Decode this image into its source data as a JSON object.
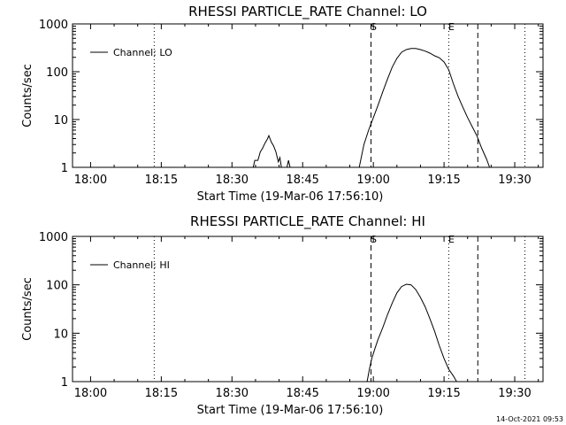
{
  "chart_data": [
    {
      "type": "line",
      "title": "RHESSI PARTICLE_RATE Channel: LO",
      "xlabel": "Start Time (19-Mar-06 17:56:10)",
      "ylabel": "Counts/sec",
      "y_scale": "log",
      "ylim": [
        1,
        1000
      ],
      "xlim": [
        "17:56:10",
        "19:36:00"
      ],
      "x_tick_labels": [
        "18:00",
        "18:15",
        "18:30",
        "18:45",
        "19:00",
        "19:15",
        "19:30"
      ],
      "y_tick_labels": [
        "1",
        "10",
        "100",
        "1000"
      ],
      "legend": {
        "position": "top-left",
        "entries": [
          "Channel: LO"
        ]
      },
      "markers": [
        {
          "label": "S",
          "x": "18:59:30",
          "style": "dashed"
        },
        {
          "label": "E",
          "x": "19:16:00",
          "style": "dotted"
        },
        {
          "label": "",
          "x": "19:22:10",
          "style": "dashed"
        },
        {
          "label": "",
          "x": "18:13:30",
          "style": "dotted"
        },
        {
          "label": "",
          "x": "19:32:10",
          "style": "dotted"
        }
      ],
      "series": [
        {
          "name": "Channel: LO",
          "segments": [
            [
              [
                "18:34:30",
                1
              ],
              [
                "18:34:50",
                1.4
              ],
              [
                "18:35:30",
                1.4
              ],
              [
                "18:36:00",
                2.1
              ],
              [
                "18:36:30",
                2.5
              ],
              [
                "18:37:00",
                3.2
              ],
              [
                "18:37:30",
                3.9
              ],
              [
                "18:37:50",
                4.6
              ],
              [
                "18:38:20",
                3.4
              ],
              [
                "18:38:50",
                2.8
              ],
              [
                "18:39:20",
                2.1
              ],
              [
                "18:39:50",
                1.3
              ],
              [
                "18:40:10",
                1.6
              ],
              [
                "18:40:30",
                1.0
              ]
            ],
            [
              [
                "18:41:40",
                1.0
              ],
              [
                "18:42:00",
                1.4
              ],
              [
                "18:42:20",
                1.0
              ]
            ],
            [
              [
                "18:57:00",
                1.0
              ],
              [
                "18:58:00",
                3.0
              ],
              [
                "18:59:00",
                6.0
              ],
              [
                "19:00:00",
                11
              ],
              [
                "19:01:00",
                20
              ],
              [
                "19:02:00",
                38
              ],
              [
                "19:03:00",
                70
              ],
              [
                "19:04:00",
                125
              ],
              [
                "19:05:00",
                190
              ],
              [
                "19:06:00",
                255
              ],
              [
                "19:07:00",
                290
              ],
              [
                "19:08:00",
                305
              ],
              [
                "19:09:00",
                305
              ],
              [
                "19:10:00",
                290
              ],
              [
                "19:11:00",
                270
              ],
              [
                "19:12:00",
                245
              ],
              [
                "19:13:00",
                215
              ],
              [
                "19:14:00",
                195
              ],
              [
                "19:15:00",
                160
              ],
              [
                "19:16:00",
                110
              ],
              [
                "19:17:00",
                55
              ],
              [
                "19:18:00",
                30
              ],
              [
                "19:19:00",
                18
              ],
              [
                "19:20:00",
                11
              ],
              [
                "19:21:00",
                7
              ],
              [
                "19:22:00",
                4.5
              ],
              [
                "19:23:00",
                2.5
              ],
              [
                "19:24:00",
                1.5
              ],
              [
                "19:24:40",
                1.0
              ]
            ]
          ]
        }
      ]
    },
    {
      "type": "line",
      "title": "RHESSI PARTICLE_RATE Channel: HI",
      "xlabel": "Start Time (19-Mar-06 17:56:10)",
      "ylabel": "Counts/sec",
      "y_scale": "log",
      "ylim": [
        1,
        1000
      ],
      "xlim": [
        "17:56:10",
        "19:36:00"
      ],
      "x_tick_labels": [
        "18:00",
        "18:15",
        "18:30",
        "18:45",
        "19:00",
        "19:15",
        "19:30"
      ],
      "y_tick_labels": [
        "1",
        "10",
        "100",
        "1000"
      ],
      "legend": {
        "position": "top-left",
        "entries": [
          "Channel: HI"
        ]
      },
      "markers": [
        {
          "label": "S",
          "x": "18:59:30",
          "style": "dashed"
        },
        {
          "label": "E",
          "x": "19:16:00",
          "style": "dotted"
        },
        {
          "label": "",
          "x": "19:22:10",
          "style": "dashed"
        },
        {
          "label": "",
          "x": "18:13:30",
          "style": "dotted"
        },
        {
          "label": "",
          "x": "19:32:10",
          "style": "dotted"
        }
      ],
      "series": [
        {
          "name": "Channel: HI",
          "segments": [
            [
              [
                "18:58:40",
                1.0
              ],
              [
                "18:59:10",
                1.8
              ],
              [
                "18:59:40",
                3.0
              ],
              [
                "19:00:20",
                4.8
              ],
              [
                "19:01:00",
                7.5
              ],
              [
                "19:02:00",
                13
              ],
              [
                "19:03:00",
                24
              ],
              [
                "19:04:00",
                42
              ],
              [
                "19:05:00",
                68
              ],
              [
                "19:06:00",
                92
              ],
              [
                "19:07:00",
                103
              ],
              [
                "19:08:00",
                100
              ],
              [
                "19:09:00",
                80
              ],
              [
                "19:10:00",
                55
              ],
              [
                "19:11:00",
                35
              ],
              [
                "19:12:00",
                20
              ],
              [
                "19:13:00",
                11
              ],
              [
                "19:14:00",
                5.5
              ],
              [
                "19:15:00",
                3.0
              ],
              [
                "19:16:00",
                1.8
              ],
              [
                "19:17:00",
                1.3
              ],
              [
                "19:17:40",
                1.0
              ]
            ]
          ]
        }
      ]
    }
  ],
  "footer": {
    "timestamp": "14-Oct-2021 09:53"
  },
  "colors": {
    "line": "#000000",
    "background": "#ffffff"
  }
}
